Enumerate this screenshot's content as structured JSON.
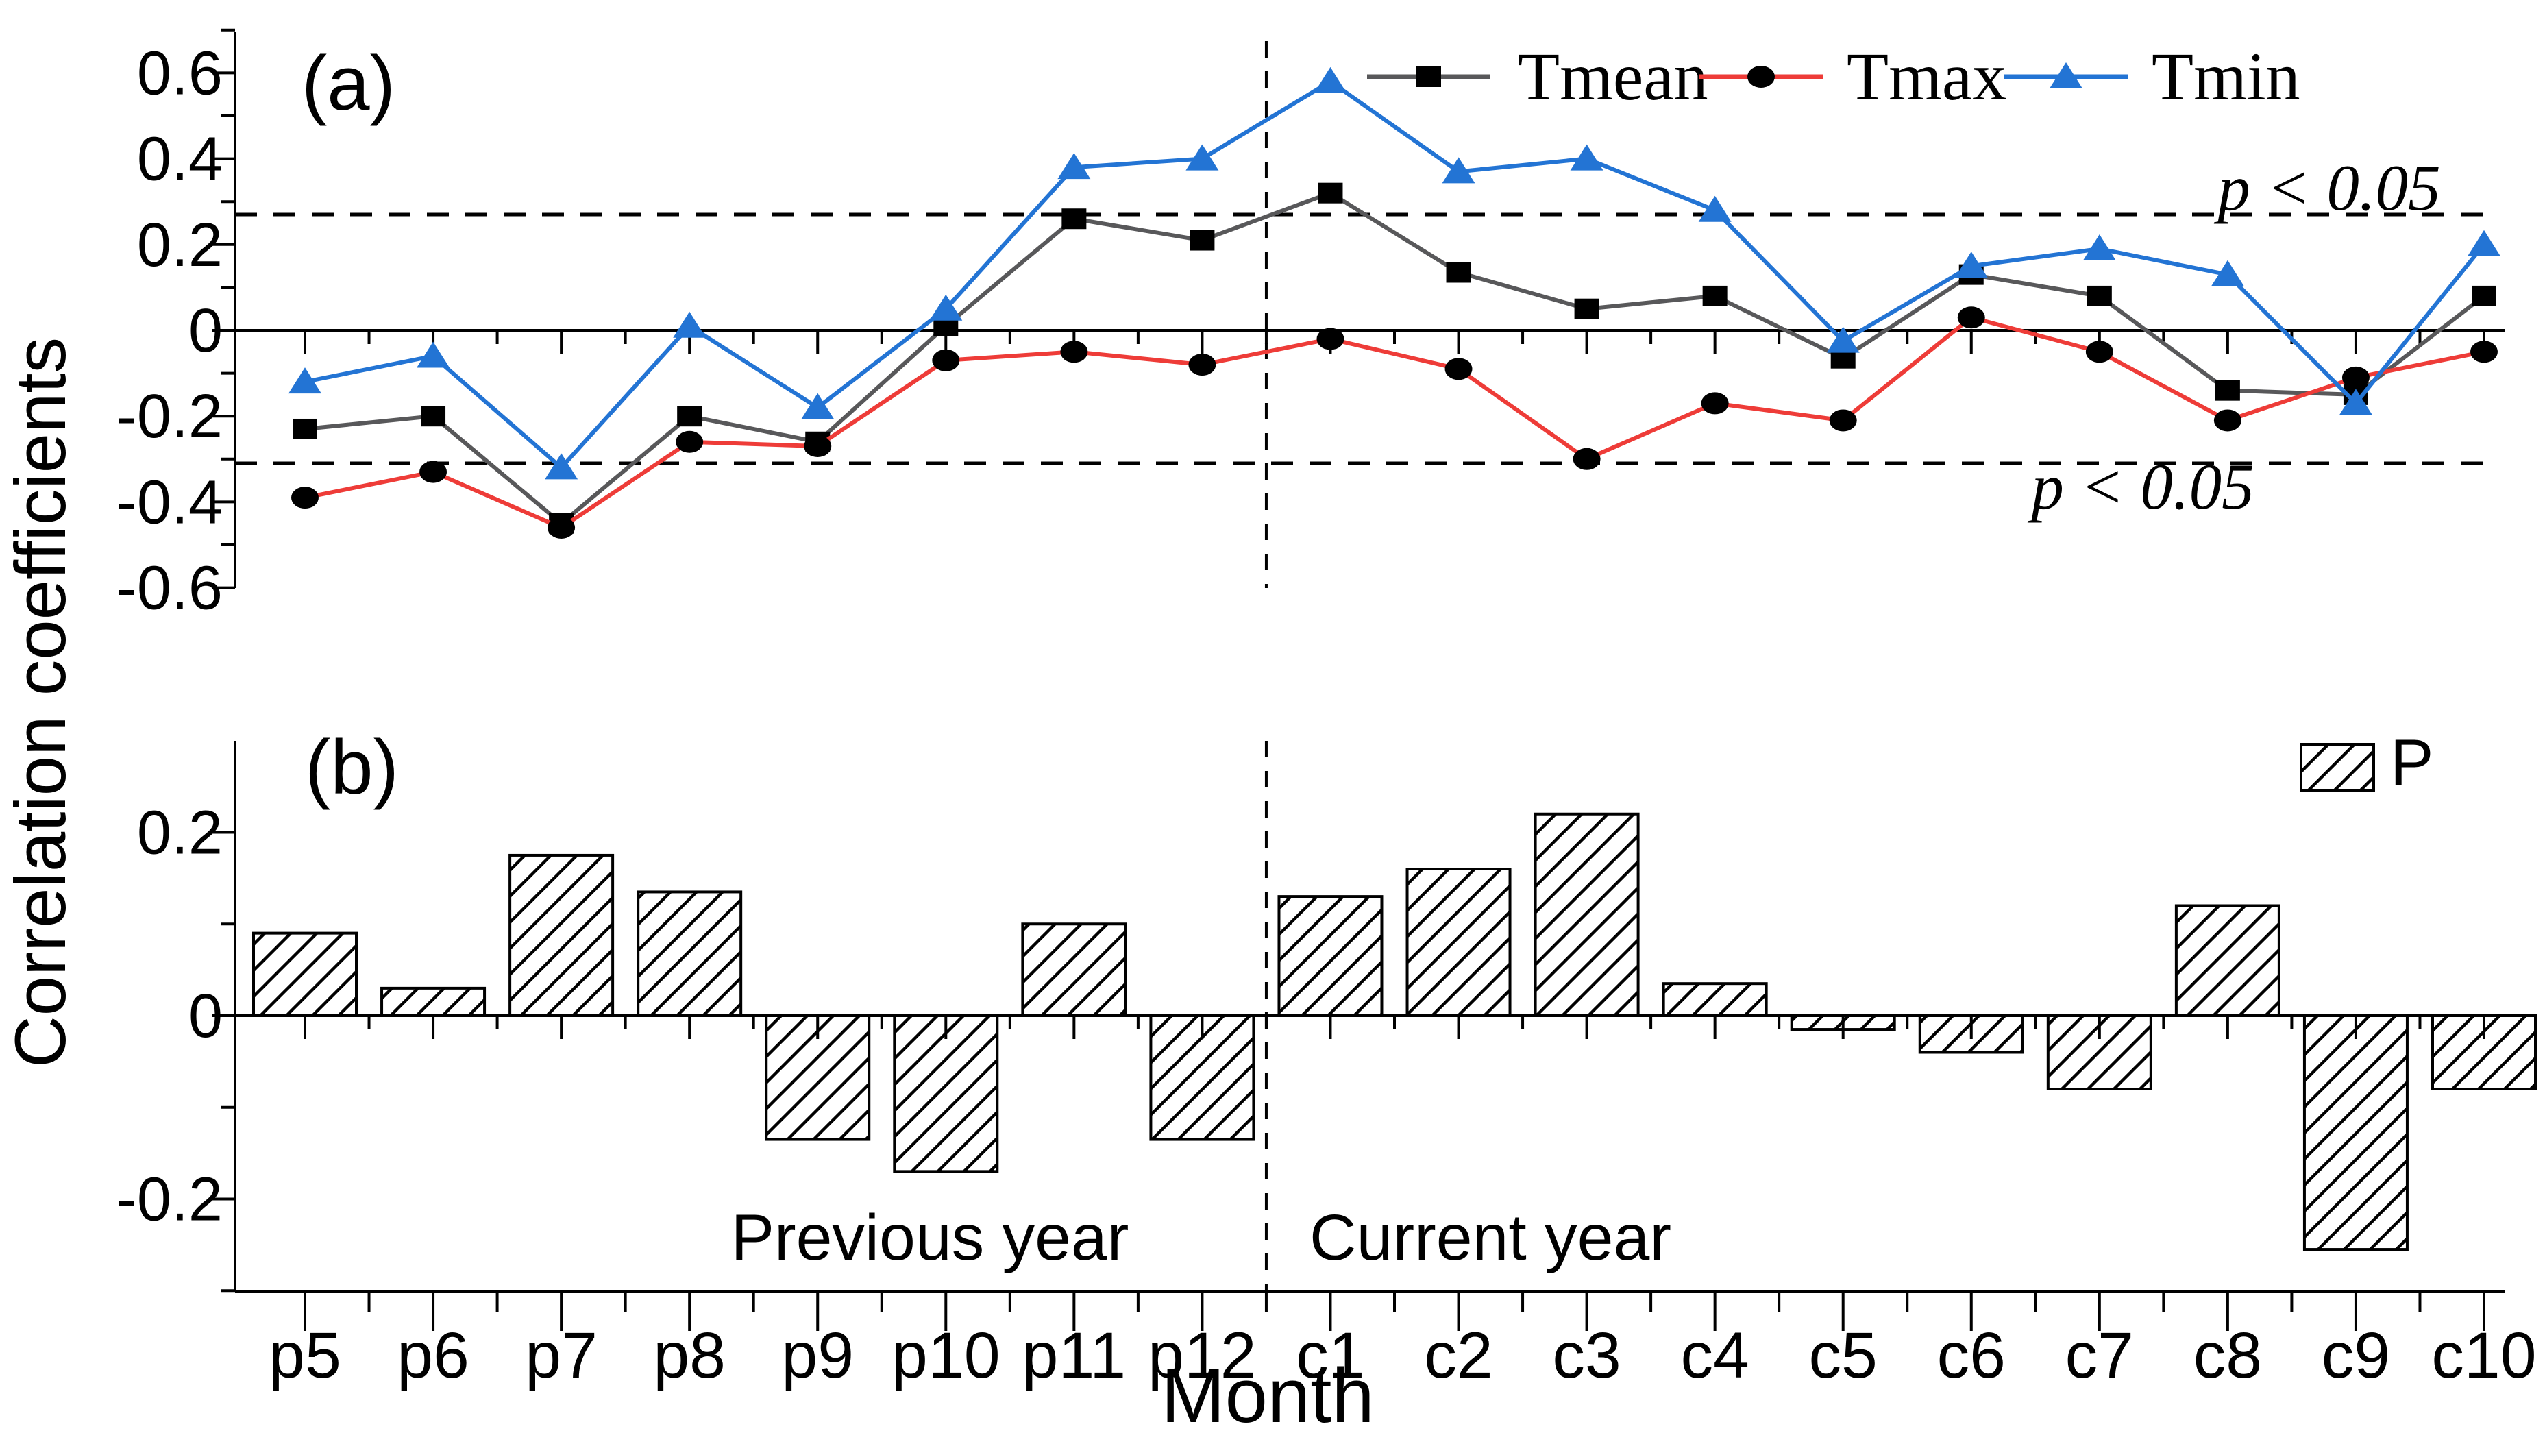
{
  "figure": {
    "shared_ylabel": "Correlation coefficients",
    "xlabel": "Month",
    "colors": {
      "tmean_line": "#58585a",
      "tmax_line": "#ee3c38",
      "tmin_line": "#2374d4",
      "marker_black": "#000000",
      "axis_black": "#000000",
      "background": "#ffffff"
    }
  },
  "chart_data": [
    {
      "panel": "a",
      "type": "line",
      "panel_label": "(a)",
      "categories": [
        "p5",
        "p6",
        "p7",
        "p8",
        "p9",
        "p10",
        "p11",
        "p12",
        "c1",
        "c2",
        "c3",
        "c4",
        "c5",
        "c6",
        "c7",
        "c8",
        "c9",
        "c10"
      ],
      "series": [
        {
          "name": "Tmean",
          "line_color": "#58585a",
          "marker": "square",
          "marker_color": "#000000",
          "values": [
            -0.23,
            -0.2,
            -0.45,
            -0.2,
            -0.26,
            0.01,
            0.26,
            0.21,
            0.32,
            0.135,
            0.05,
            0.08,
            -0.065,
            0.13,
            0.08,
            -0.14,
            -0.15,
            0.08
          ]
        },
        {
          "name": "Tmax",
          "line_color": "#ee3c38",
          "marker": "circle",
          "marker_color": "#000000",
          "values": [
            -0.39,
            -0.33,
            -0.46,
            -0.26,
            -0.27,
            -0.07,
            -0.05,
            -0.08,
            -0.02,
            -0.09,
            -0.3,
            -0.17,
            -0.21,
            0.03,
            -0.05,
            -0.21,
            -0.11,
            -0.05
          ]
        },
        {
          "name": "Tmin",
          "line_color": "#2374d4",
          "marker": "triangle",
          "marker_color": "#2374d4",
          "values": [
            -0.12,
            -0.06,
            -0.32,
            0.01,
            -0.18,
            0.05,
            0.38,
            0.4,
            0.58,
            0.37,
            0.4,
            0.28,
            -0.025,
            0.15,
            0.19,
            0.13,
            -0.17,
            0.2
          ]
        }
      ],
      "ylim": [
        -0.6,
        0.7
      ],
      "yticks": [
        0.6,
        0.4,
        0.2,
        0.0,
        -0.2,
        -0.4,
        -0.6
      ],
      "significance_lines": {
        "upper": 0.27,
        "lower": -0.31,
        "upper_label": "p < 0.05",
        "lower_label": "p < 0.05"
      },
      "divider_between": [
        "p12",
        "c1"
      ],
      "legend_position": "top-right",
      "grid": false
    },
    {
      "panel": "b",
      "type": "bar",
      "panel_label": "(b)",
      "categories": [
        "p5",
        "p6",
        "p7",
        "p8",
        "p9",
        "p10",
        "p11",
        "p12",
        "c1",
        "c2",
        "c3",
        "c4",
        "c5",
        "c6",
        "c7",
        "c8",
        "c9",
        "c10"
      ],
      "series": [
        {
          "name": "P",
          "fill": "diagonal-hatch",
          "values": [
            0.09,
            0.03,
            0.175,
            0.135,
            -0.135,
            -0.17,
            0.1,
            -0.135,
            0.13,
            0.16,
            0.22,
            0.035,
            -0.015,
            -0.04,
            -0.08,
            0.12,
            -0.255,
            -0.08
          ]
        }
      ],
      "ylim": [
        -0.3,
        0.3
      ],
      "yticks": [
        0.2,
        0.0,
        -0.2
      ],
      "annotations": [
        {
          "text": "Previous year",
          "side": "left"
        },
        {
          "text": "Current year",
          "side": "right"
        }
      ],
      "xlabel": "Month",
      "divider_between": [
        "p12",
        "c1"
      ],
      "legend": {
        "label": "P",
        "position": "top-right"
      },
      "grid": false
    }
  ]
}
